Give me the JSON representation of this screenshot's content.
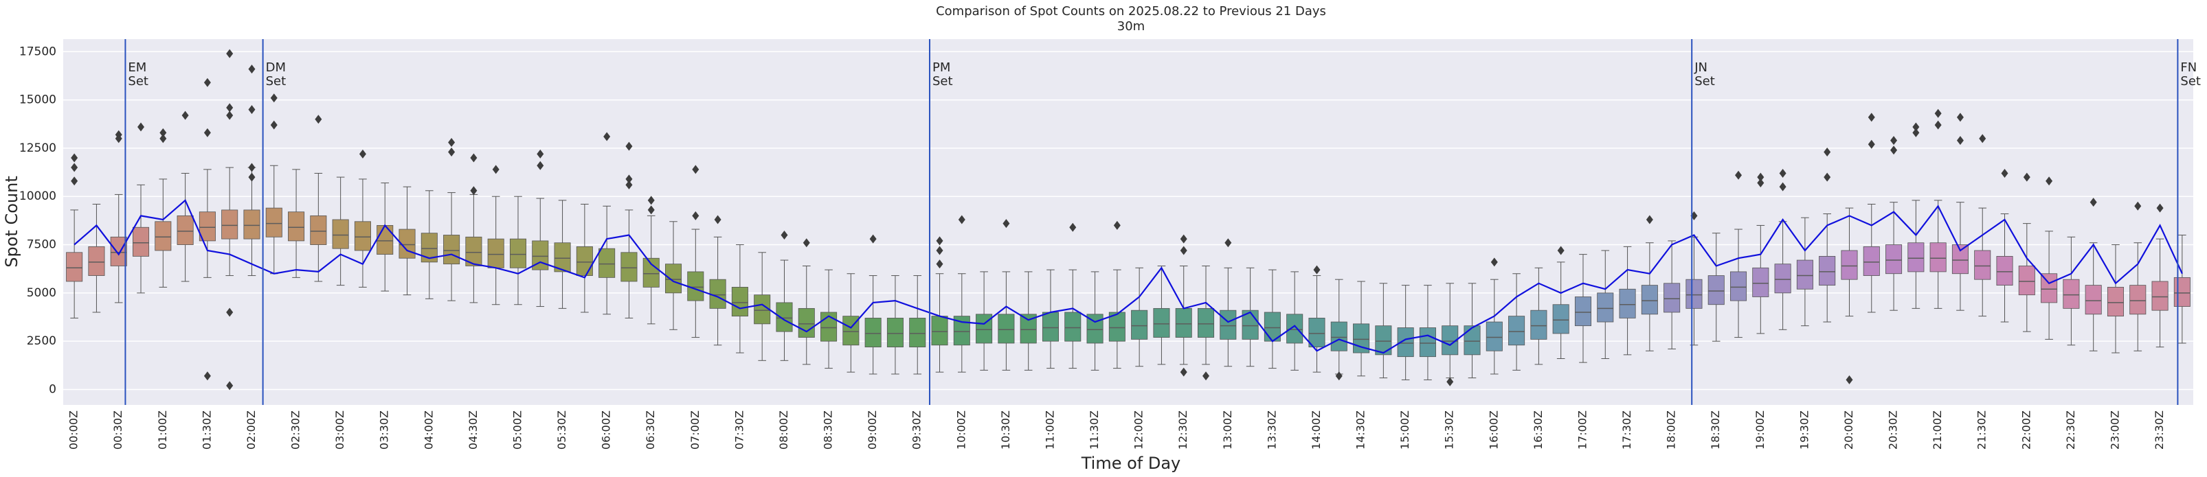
{
  "chart_data": {
    "type": "box",
    "title": "Comparison of Spot Counts on 2025.08.22 to Previous 21 Days",
    "subtitle": "30m",
    "x_label": "Time of Day",
    "y_label": "Spot Count",
    "ylim": [
      -800,
      18150
    ],
    "yticks": [
      0,
      2500,
      5000,
      7500,
      10000,
      12500,
      15000,
      17500
    ],
    "grid": true,
    "categories": [
      "00:00Z",
      null,
      "00:30Z",
      null,
      "01:00Z",
      null,
      "01:30Z",
      null,
      "02:00Z",
      null,
      "02:30Z",
      null,
      "03:00Z",
      null,
      "03:30Z",
      null,
      "04:00Z",
      null,
      "04:30Z",
      null,
      "05:00Z",
      null,
      "05:30Z",
      null,
      "06:00Z",
      null,
      "06:30Z",
      null,
      "07:00Z",
      null,
      "07:30Z",
      null,
      "08:00Z",
      null,
      "08:30Z",
      null,
      "09:00Z",
      null,
      "09:30Z",
      null,
      "10:00Z",
      null,
      "10:30Z",
      null,
      "11:00Z",
      null,
      "11:30Z",
      null,
      "12:00Z",
      null,
      "12:30Z",
      null,
      "13:00Z",
      null,
      "13:30Z",
      null,
      "14:00Z",
      null,
      "14:30Z",
      null,
      "15:00Z",
      null,
      "15:30Z",
      null,
      "16:00Z",
      null,
      "16:30Z",
      null,
      "17:00Z",
      null,
      "17:30Z",
      null,
      "18:00Z",
      null,
      "18:30Z",
      null,
      "19:00Z",
      null,
      "19:30Z",
      null,
      "20:00Z",
      null,
      "20:30Z",
      null,
      "21:00Z",
      null,
      "21:30Z",
      null,
      "22:00Z",
      null,
      "22:30Z",
      null,
      "23:00Z",
      null,
      "23:30Z",
      null
    ],
    "boxes": {
      "whislo": [
        3700,
        4000,
        4500,
        5000,
        5300,
        5600,
        5800,
        5900,
        5900,
        6000,
        5800,
        5600,
        5400,
        5300,
        5100,
        4900,
        4700,
        4600,
        4500,
        4400,
        4400,
        4300,
        4200,
        4000,
        3900,
        3700,
        3400,
        3100,
        2700,
        2300,
        1900,
        1500,
        1500,
        1300,
        1100,
        900,
        800,
        800,
        800,
        900,
        900,
        1000,
        1000,
        1000,
        1100,
        1100,
        1000,
        1100,
        1200,
        1300,
        1300,
        1300,
        1200,
        1200,
        1100,
        1000,
        900,
        800,
        700,
        600,
        500,
        500,
        600,
        600,
        800,
        1000,
        1300,
        1600,
        1400,
        1600,
        1800,
        2000,
        2100,
        2300,
        2500,
        2700,
        2900,
        3100,
        3300,
        3500,
        3800,
        4000,
        4100,
        4200,
        4200,
        4100,
        3800,
        3500,
        3000,
        2600,
        2300,
        2000,
        1900,
        2000,
        2200,
        2400
      ],
      "q1": [
        5600,
        5900,
        6400,
        6900,
        7200,
        7500,
        7700,
        7800,
        7800,
        7900,
        7700,
        7500,
        7300,
        7200,
        7000,
        6800,
        6600,
        6500,
        6400,
        6300,
        6300,
        6200,
        6100,
        5900,
        5800,
        5600,
        5300,
        5000,
        4600,
        4200,
        3800,
        3400,
        3000,
        2700,
        2500,
        2300,
        2200,
        2200,
        2200,
        2300,
        2300,
        2400,
        2400,
        2400,
        2500,
        2500,
        2400,
        2500,
        2600,
        2700,
        2700,
        2700,
        2600,
        2600,
        2500,
        2400,
        2200,
        2000,
        1900,
        1800,
        1700,
        1700,
        1800,
        1800,
        2000,
        2300,
        2600,
        2900,
        3300,
        3500,
        3700,
        3900,
        4000,
        4200,
        4400,
        4600,
        4800,
        5000,
        5200,
        5400,
        5700,
        5900,
        6000,
        6100,
        6100,
        6000,
        5700,
        5400,
        4900,
        4500,
        4200,
        3900,
        3800,
        3900,
        4100,
        4300
      ],
      "med": [
        6300,
        6600,
        7100,
        7600,
        7900,
        8200,
        8400,
        8500,
        8500,
        8600,
        8400,
        8200,
        8000,
        7900,
        7700,
        7500,
        7300,
        7200,
        7100,
        7000,
        7000,
        6900,
        6800,
        6600,
        6500,
        6300,
        6000,
        5700,
        5300,
        4900,
        4500,
        4100,
        3700,
        3400,
        3200,
        3000,
        2900,
        2900,
        2900,
        3000,
        3000,
        3100,
        3100,
        3100,
        3200,
        3200,
        3100,
        3200,
        3300,
        3400,
        3400,
        3400,
        3300,
        3300,
        3200,
        3100,
        2900,
        2700,
        2600,
        2500,
        2400,
        2400,
        2500,
        2500,
        2700,
        3000,
        3300,
        3600,
        4000,
        4200,
        4400,
        4600,
        4700,
        4900,
        5100,
        5300,
        5500,
        5700,
        5900,
        6100,
        6400,
        6600,
        6700,
        6800,
        6800,
        6700,
        6400,
        6100,
        5600,
        5200,
        4900,
        4600,
        4500,
        4600,
        4800,
        5000
      ],
      "q3": [
        7100,
        7400,
        7900,
        8400,
        8700,
        9000,
        9200,
        9300,
        9300,
        9400,
        9200,
        9000,
        8800,
        8700,
        8500,
        8300,
        8100,
        8000,
        7900,
        7800,
        7800,
        7700,
        7600,
        7400,
        7300,
        7100,
        6800,
        6500,
        6100,
        5700,
        5300,
        4900,
        4500,
        4200,
        4000,
        3800,
        3700,
        3700,
        3700,
        3800,
        3800,
        3900,
        3900,
        3900,
        4000,
        4000,
        3900,
        4000,
        4100,
        4200,
        4200,
        4200,
        4100,
        4100,
        4000,
        3900,
        3700,
        3500,
        3400,
        3300,
        3200,
        3200,
        3300,
        3300,
        3500,
        3800,
        4100,
        4400,
        4800,
        5000,
        5200,
        5400,
        5500,
        5700,
        5900,
        6100,
        6300,
        6500,
        6700,
        6900,
        7200,
        7400,
        7500,
        7600,
        7600,
        7500,
        7200,
        6900,
        6400,
        6000,
        5700,
        5400,
        5300,
        5400,
        5600,
        5800
      ],
      "whishi": [
        9300,
        9600,
        10100,
        10600,
        10900,
        11200,
        11400,
        11500,
        11500,
        11600,
        11400,
        11200,
        11000,
        10900,
        10700,
        10500,
        10300,
        10200,
        10100,
        10000,
        10000,
        9900,
        9800,
        9600,
        9500,
        9300,
        9000,
        8700,
        8300,
        7900,
        7500,
        7100,
        6700,
        6400,
        6200,
        6000,
        5900,
        5900,
        5900,
        6000,
        6000,
        6100,
        6100,
        6100,
        6200,
        6200,
        6100,
        6200,
        6300,
        6400,
        6400,
        6400,
        6300,
        6300,
        6200,
        6100,
        5900,
        5700,
        5600,
        5500,
        5400,
        5400,
        5500,
        5500,
        5700,
        6000,
        6300,
        6600,
        7000,
        7200,
        7400,
        7600,
        7700,
        7900,
        8100,
        8300,
        8500,
        8700,
        8900,
        9100,
        9400,
        9600,
        9700,
        9800,
        9800,
        9700,
        9400,
        9100,
        8600,
        8200,
        7900,
        7600,
        7500,
        7600,
        7800,
        8000
      ],
      "fliers": [
        [
          12000,
          11500,
          10800
        ],
        [],
        [
          13200,
          13000
        ],
        [
          13600
        ],
        [
          13300,
          13000
        ],
        [
          14200
        ],
        [
          15900,
          13300,
          700
        ],
        [
          17400,
          14600,
          14200,
          4000,
          200
        ],
        [
          16600,
          14500,
          11500,
          11000
        ],
        [
          15100,
          13700
        ],
        [],
        [
          14000
        ],
        [],
        [
          12200
        ],
        [],
        [],
        [],
        [
          12800,
          12300
        ],
        [
          12000,
          10300
        ],
        [
          11400
        ],
        [],
        [
          12200,
          11600
        ],
        [],
        [],
        [
          13100
        ],
        [
          12600,
          10900,
          10600
        ],
        [
          9800,
          9300
        ],
        [],
        [
          11400,
          9000
        ],
        [
          8800
        ],
        [],
        [],
        [
          8000
        ],
        [
          7600
        ],
        [],
        [],
        [
          7800
        ],
        [],
        [],
        [
          7700,
          7200,
          6500
        ],
        [
          8800
        ],
        [],
        [
          8600
        ],
        [],
        [],
        [
          8400
        ],
        [],
        [
          8500
        ],
        [],
        [],
        [
          7800,
          7200,
          900
        ],
        [
          700
        ],
        [
          7600
        ],
        [],
        [],
        [],
        [
          6200
        ],
        [
          700
        ],
        [],
        [],
        [],
        [],
        [
          400
        ],
        [],
        [
          6600
        ],
        [],
        [],
        [
          7200
        ],
        [],
        [],
        [],
        [
          8800
        ],
        [],
        [
          9000
        ],
        [],
        [
          11100
        ],
        [
          11000,
          10700
        ],
        [
          11200,
          10500
        ],
        [],
        [
          12300,
          11000
        ],
        [
          500
        ],
        [
          14100,
          12700
        ],
        [
          12400,
          12900
        ],
        [
          13600,
          13300
        ],
        [
          14300,
          13700
        ],
        [
          14100,
          12900
        ],
        [
          13000
        ],
        [
          11200
        ],
        [
          11000
        ],
        [
          10800
        ],
        [],
        [
          9700
        ],
        [],
        [
          9500
        ],
        [
          9400
        ],
        []
      ],
      "colors": [
        "#c98a85",
        "#c98a85",
        "#c98a85",
        "#c98a85",
        "#c48e74",
        "#c48e74",
        "#c48e74",
        "#c48e74",
        "#bc9068",
        "#bc9068",
        "#bc9068",
        "#bc9068",
        "#b0935c",
        "#b0935c",
        "#b0935c",
        "#b0935c",
        "#a39558",
        "#a39558",
        "#a39558",
        "#a39558",
        "#979a55",
        "#979a55",
        "#979a55",
        "#979a55",
        "#8b9c52",
        "#8b9c52",
        "#8b9c52",
        "#8b9c52",
        "#7e9c52",
        "#7e9c52",
        "#7e9c52",
        "#7e9c52",
        "#6f9d56",
        "#6f9d56",
        "#6f9d56",
        "#6f9d56",
        "#5f9d5e",
        "#5f9d5e",
        "#5f9d5e",
        "#5f9d5e",
        "#569c6c",
        "#569c6c",
        "#569c6c",
        "#569c6c",
        "#559b78",
        "#559b78",
        "#559b78",
        "#559b78",
        "#579b83",
        "#579b83",
        "#579b83",
        "#579b83",
        "#589a8c",
        "#589a8c",
        "#589a8c",
        "#589a8c",
        "#5a9995",
        "#5a9995",
        "#5a9995",
        "#5a9995",
        "#5e99a0",
        "#5e99a0",
        "#5e99a0",
        "#5e99a0",
        "#6a98ad",
        "#6a98ad",
        "#6a98ad",
        "#6a98ad",
        "#7d95b9",
        "#7d95b9",
        "#7d95b9",
        "#7d95b9",
        "#958fc0",
        "#958fc0",
        "#958fc0",
        "#958fc0",
        "#a78bc3",
        "#a78bc3",
        "#a78bc3",
        "#a78bc3",
        "#b986c2",
        "#b986c2",
        "#b986c2",
        "#b986c2",
        "#c585b8",
        "#c585b8",
        "#c585b8",
        "#c585b8",
        "#cc87ab",
        "#cc87ab",
        "#cc87ab",
        "#cc87ab",
        "#cc899c",
        "#cc899c",
        "#cc899c",
        "#cc899c"
      ],
      "median_color": "#5c5c5c",
      "whisker_color": "#555555",
      "flier_color": "#3d3d3d"
    },
    "line": {
      "color": "#1010dd",
      "values": [
        7500,
        8500,
        7000,
        9000,
        8800,
        9800,
        7200,
        7000,
        6500,
        6000,
        6200,
        6100,
        7000,
        6500,
        8500,
        7200,
        6800,
        7000,
        6500,
        6300,
        6000,
        6600,
        6200,
        5800,
        7800,
        8000,
        6500,
        5600,
        5200,
        4800,
        4200,
        4400,
        3600,
        3000,
        3800,
        3200,
        4500,
        4600,
        4200,
        3800,
        3500,
        3400,
        4300,
        3600,
        4000,
        4200,
        3500,
        3900,
        4800,
        6300,
        4200,
        4500,
        3500,
        4000,
        2500,
        3300,
        2000,
        2600,
        2200,
        1900,
        2600,
        2800,
        2300,
        3200,
        3800,
        4800,
        5500,
        5000,
        5500,
        5200,
        6200,
        6000,
        7500,
        8000,
        6400,
        6800,
        7000,
        8800,
        7200,
        8500,
        9000,
        8500,
        9200,
        8000,
        9500,
        7200,
        8000,
        8800,
        6800,
        5500,
        6000,
        7500,
        5500,
        6500,
        8500,
        6000
      ]
    },
    "vline_color": "#2a52be",
    "annotations": [
      {
        "x": 2.3,
        "lines": [
          "EM",
          "Set"
        ]
      },
      {
        "x": 8.5,
        "lines": [
          "DM",
          "Set"
        ]
      },
      {
        "x": 38.55,
        "lines": [
          "PM",
          "Set"
        ]
      },
      {
        "x": 72.9,
        "lines": [
          "JN",
          "Set"
        ]
      },
      {
        "x": 94.8,
        "lines": [
          "FN",
          "Set"
        ]
      }
    ]
  }
}
